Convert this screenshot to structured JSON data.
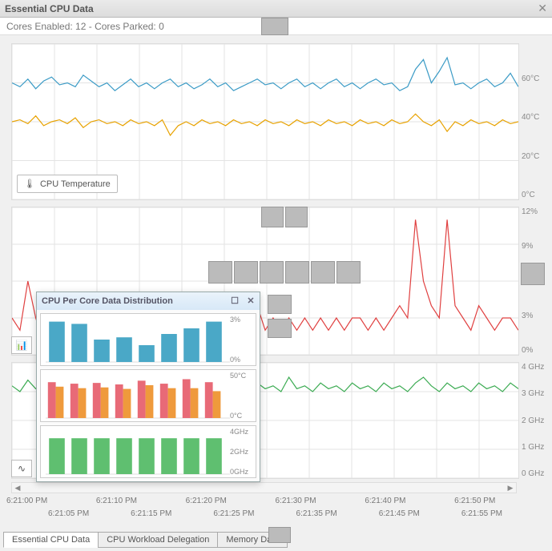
{
  "window": {
    "title": "Essential CPU Data",
    "close_glyph": "✕"
  },
  "subheader": {
    "text": "Cores Enabled: 12 - Cores Parked: 0"
  },
  "time_axis": {
    "top_row": [
      "6:21:00 PM",
      "6:21:10 PM",
      "6:21:20 PM",
      "6:21:30 PM",
      "6:21:40 PM",
      "6:21:50 PM"
    ],
    "bot_row": [
      "6:21:05 PM",
      "6:21:15 PM",
      "6:21:25 PM",
      "6:21:35 PM",
      "6:21:45 PM",
      "6:21:55 PM"
    ]
  },
  "tabs": {
    "items": [
      "Essential CPU Data",
      "CPU Workload Delegation",
      "Memory Data"
    ],
    "active": 0
  },
  "charts": {
    "temp": {
      "legend_label": "CPU Temperature",
      "y_labels": [
        "",
        "60°C",
        "40°C",
        "20°C",
        "0°C"
      ],
      "y_domain": [
        0,
        80
      ],
      "grid_color": "#e3e3e3",
      "series": [
        {
          "name": "cpu-temp-blue",
          "color": "#3b9bc6",
          "values": [
            60,
            58,
            62,
            57,
            61,
            63,
            59,
            60,
            58,
            64,
            61,
            58,
            60,
            56,
            59,
            62,
            58,
            60,
            57,
            60,
            62,
            58,
            60,
            57,
            59,
            62,
            58,
            60,
            56,
            58,
            60,
            62,
            59,
            60,
            57,
            60,
            62,
            58,
            60,
            57,
            60,
            62,
            58,
            60,
            57,
            60,
            62,
            59,
            60,
            56,
            58,
            67,
            72,
            60,
            66,
            73,
            59,
            60,
            57,
            60,
            62,
            58,
            60,
            65,
            58
          ]
        },
        {
          "name": "cpu-temp-orange",
          "color": "#e8a200",
          "values": [
            40,
            41,
            39,
            43,
            38,
            40,
            41,
            39,
            42,
            37,
            40,
            41,
            39,
            40,
            38,
            41,
            39,
            40,
            38,
            41,
            33,
            38,
            40,
            38,
            41,
            39,
            40,
            38,
            41,
            39,
            40,
            38,
            41,
            39,
            40,
            38,
            41,
            39,
            40,
            38,
            41,
            39,
            40,
            38,
            41,
            39,
            40,
            38,
            41,
            39,
            40,
            44,
            40,
            38,
            41,
            35,
            40,
            38,
            41,
            39,
            40,
            38,
            41,
            39,
            40
          ]
        }
      ]
    },
    "usage": {
      "y_labels": [
        "12%",
        "9%",
        "6%",
        "3%",
        "0%"
      ],
      "y_domain": [
        0,
        12
      ],
      "grid_color": "#e3e3e3",
      "series": [
        {
          "name": "cpu-usage-red",
          "color": "#e04040",
          "values": [
            3,
            2,
            6,
            3,
            1,
            4,
            2,
            3,
            2,
            5,
            3,
            1,
            2,
            3,
            2,
            3,
            1,
            3,
            2,
            3,
            2,
            3,
            2,
            3,
            4,
            2,
            3,
            2,
            3,
            2,
            3,
            4,
            2,
            3,
            2,
            3,
            2,
            3,
            2,
            3,
            2,
            3,
            2,
            3,
            3,
            2,
            3,
            2,
            3,
            4,
            3,
            11,
            6,
            4,
            3,
            11,
            4,
            3,
            2,
            4,
            3,
            2,
            3,
            3,
            2
          ]
        }
      ],
      "icon_button_glyph": "📊"
    },
    "freq": {
      "y_labels": [
        "4 GHz",
        "3 GHz",
        "2 GHz",
        "1 GHz",
        "0 GHz"
      ],
      "y_domain": [
        0,
        4
      ],
      "grid_color": "#e3e3e3",
      "series": [
        {
          "name": "cpu-freq-green",
          "color": "#3bab52",
          "values": [
            3.2,
            3.0,
            3.4,
            3.1,
            3.3,
            3.0,
            3.2,
            3.1,
            3.4,
            3.2,
            3.0,
            3.3,
            3.1,
            3.2,
            3.0,
            3.3,
            3.1,
            3.2,
            3.0,
            3.3,
            3.1,
            3.2,
            3.0,
            3.3,
            3.1,
            3.2,
            3.0,
            3.3,
            3.1,
            3.2,
            3.0,
            3.3,
            3.1,
            3.2,
            3.0,
            3.5,
            3.1,
            3.2,
            3.0,
            3.3,
            3.1,
            3.2,
            3.0,
            3.3,
            3.1,
            3.2,
            3.0,
            3.3,
            3.1,
            3.2,
            3.0,
            3.3,
            3.5,
            3.2,
            3.0,
            3.3,
            3.1,
            3.2,
            3.0,
            3.3,
            3.1,
            3.2,
            3.0,
            3.3,
            3.1
          ]
        }
      ],
      "icon_button_glyph": "∿"
    }
  },
  "popup": {
    "title": "CPU Per Core Data Distribution",
    "max_glyph": "☐",
    "close_glyph": "✕",
    "rows": [
      {
        "y_labels": [
          "3%",
          "0%"
        ],
        "y_domain": [
          0,
          4
        ],
        "color": "#4aa8c7",
        "values": [
          3.6,
          3.4,
          2.0,
          2.2,
          1.5,
          2.5,
          3.0,
          3.6
        ]
      },
      {
        "y_labels": [
          "50°C",
          "0°C"
        ],
        "y_domain": [
          0,
          60
        ],
        "groups": [
          {
            "color": "#e86a77",
            "values": [
              48,
              46,
              47,
              45,
              50,
              46,
              52,
              48
            ]
          },
          {
            "color": "#ef9a3c",
            "values": [
              42,
              40,
              41,
              39,
              44,
              40,
              40,
              36
            ]
          }
        ]
      },
      {
        "y_labels": [
          "4GHz",
          "2GHz",
          "0GHz"
        ],
        "y_domain": [
          0,
          4
        ],
        "color": "#5fbf70",
        "values": [
          3.2,
          3.2,
          3.2,
          3.2,
          3.2,
          3.2,
          3.2,
          3.2
        ]
      }
    ]
  },
  "colors": {
    "bg": "#ffffff",
    "panel_border": "#dddddd",
    "gray_block": "#bbbbbb"
  }
}
